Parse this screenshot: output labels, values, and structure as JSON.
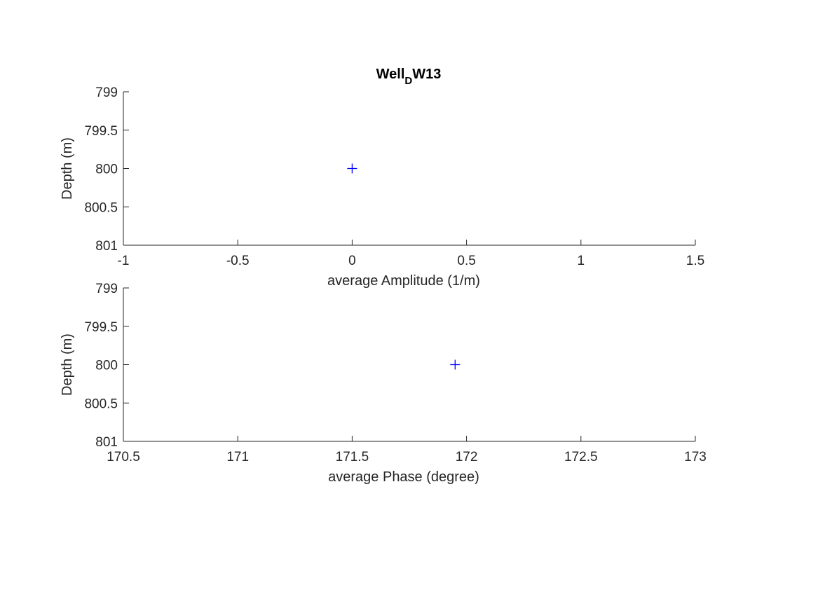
{
  "chart_data": [
    {
      "type": "scatter",
      "title_main": "Well",
      "title_sub": "D",
      "title_rest": "W13",
      "xlabel": "average Amplitude (1/m)",
      "ylabel": "Depth (m)",
      "xlim": [
        -1,
        1.5
      ],
      "ylim": [
        799,
        801
      ],
      "y_reversed": true,
      "xticks": [
        "-1",
        "-0.5",
        "0",
        "0.5",
        "1",
        "1.5"
      ],
      "yticks": [
        "799",
        "799.5",
        "800",
        "800.5",
        "801"
      ],
      "marker": "+",
      "color": "#0000ff",
      "points": [
        {
          "x": 0,
          "y": 800
        }
      ],
      "grid": false
    },
    {
      "type": "scatter",
      "xlabel": "average Phase (degree)",
      "ylabel": "Depth (m)",
      "xlim": [
        170.5,
        173
      ],
      "ylim": [
        799,
        801
      ],
      "y_reversed": true,
      "xticks": [
        "170.5",
        "171",
        "171.5",
        "172",
        "172.5",
        "173"
      ],
      "yticks": [
        "799",
        "799.5",
        "800",
        "800.5",
        "801"
      ],
      "marker": "+",
      "color": "#0000ff",
      "points": [
        {
          "x": 171.95,
          "y": 800
        }
      ],
      "grid": false
    }
  ]
}
